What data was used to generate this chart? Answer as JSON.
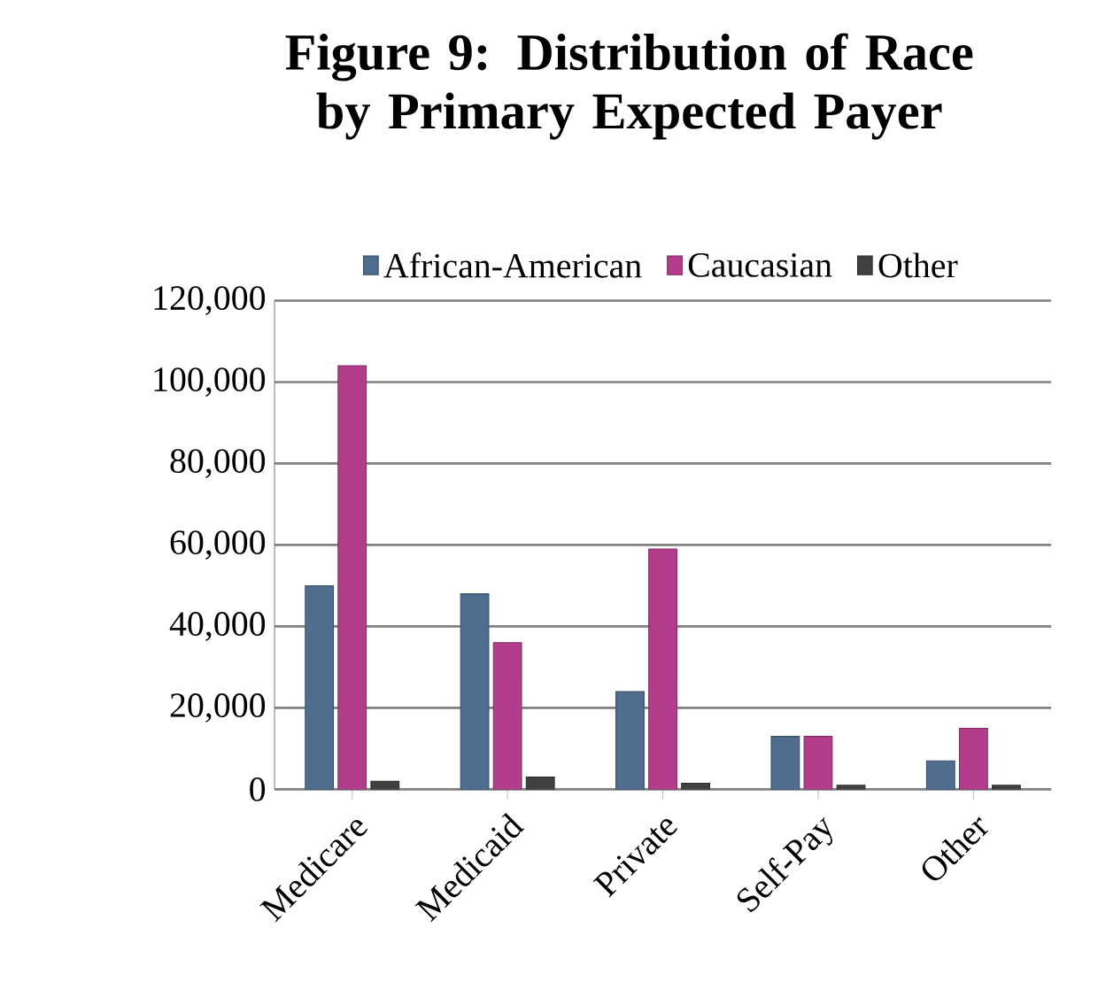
{
  "chart_data": {
    "type": "bar",
    "title": "Figure 9:  Distribution of Race by Primary Expected Payer",
    "categories": [
      "Medicare",
      "Medicaid",
      "Private",
      "Self-Pay",
      "Other"
    ],
    "series": [
      {
        "name": "African-American",
        "color": "#4f6d8f",
        "values": [
          50000,
          48000,
          24000,
          13000,
          7000
        ]
      },
      {
        "name": "Caucasian",
        "color": "#b43c8c",
        "values": [
          104000,
          36000,
          59000,
          13000,
          15000
        ]
      },
      {
        "name": "Other",
        "color": "#404040",
        "values": [
          2000,
          3000,
          1500,
          1000,
          1000
        ]
      }
    ],
    "ylim": [
      0,
      120000
    ],
    "yticks": [
      0,
      {
        "value": 20000,
        "label": "20,000"
      },
      {
        "value": 40000,
        "label": "40,000"
      },
      {
        "value": 60000,
        "label": "60,000"
      },
      {
        "value": 80000,
        "label": "80,000"
      },
      {
        "value": 100000,
        "label": "100,000"
      },
      {
        "value": 120000,
        "label": "120,000"
      }
    ],
    "grid": "y",
    "legend": "top"
  }
}
